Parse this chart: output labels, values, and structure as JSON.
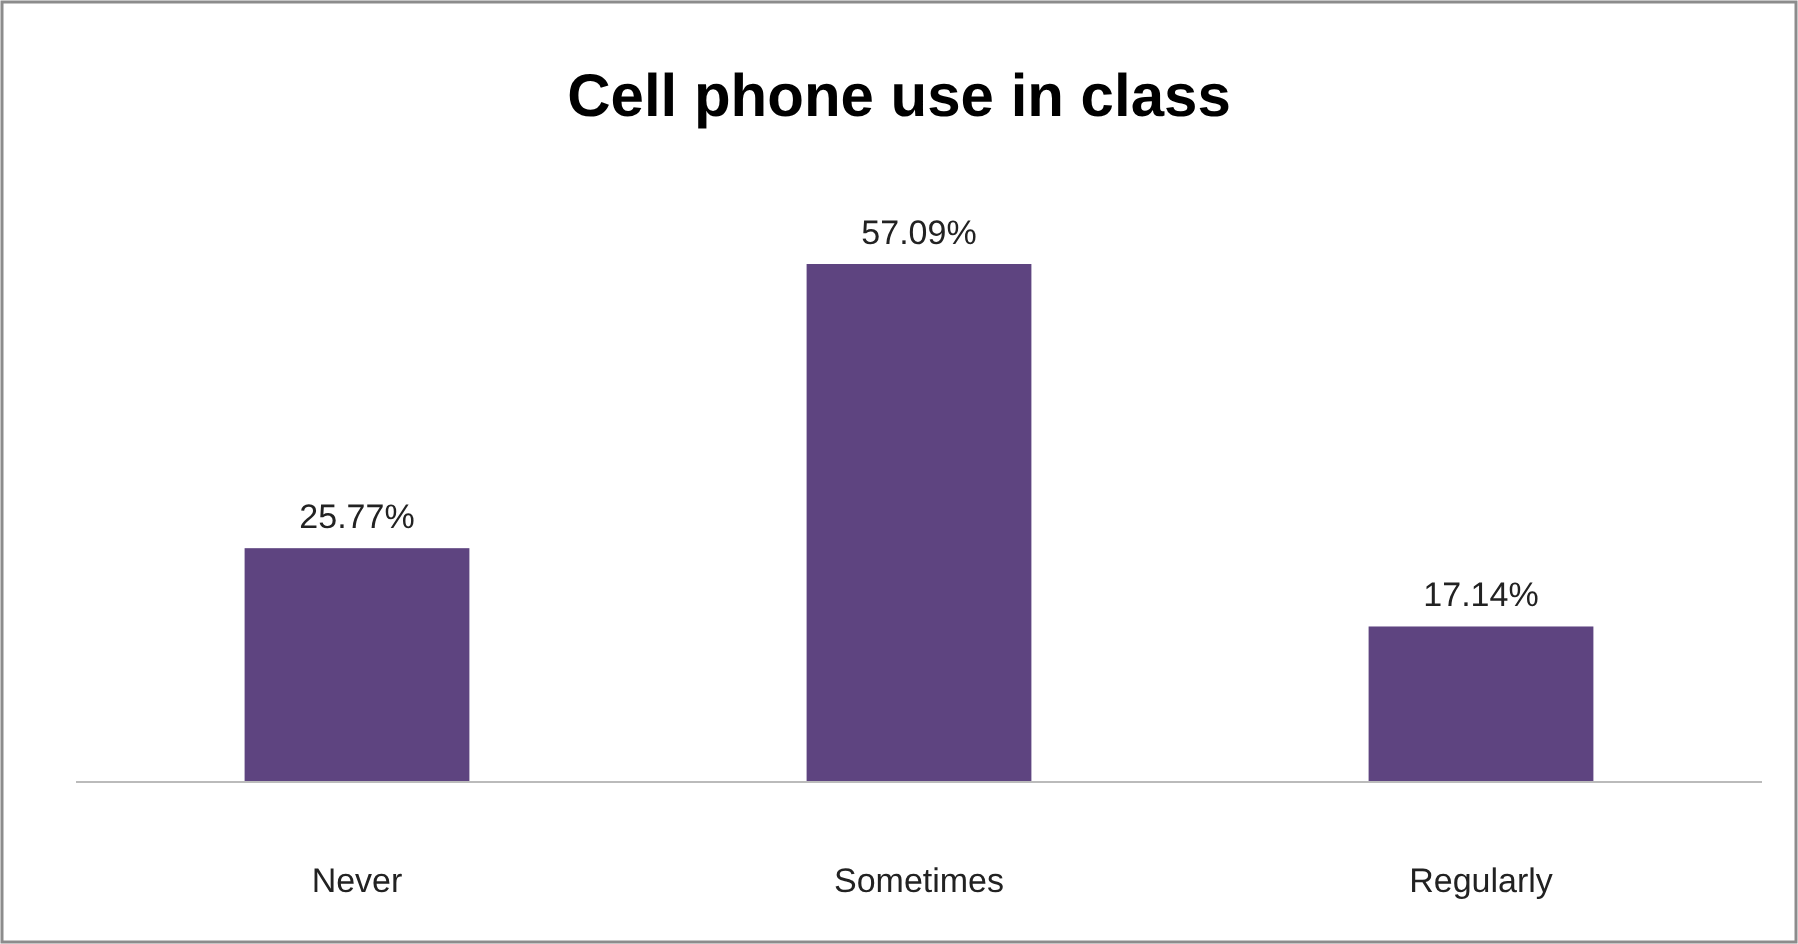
{
  "chart_data": {
    "type": "bar",
    "title": "Cell phone use in class",
    "categories": [
      "Never",
      "Sometimes",
      "Regularly"
    ],
    "values": [
      25.77,
      57.09,
      17.14
    ],
    "value_labels": [
      "25.77%",
      "57.09%",
      "17.14%"
    ],
    "color": "#5e4480",
    "grid": false
  }
}
